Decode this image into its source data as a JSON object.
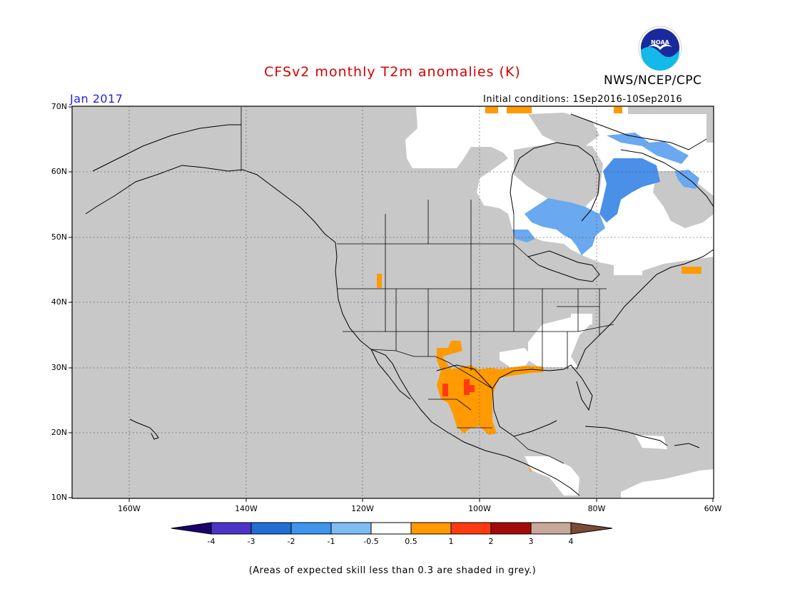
{
  "header": {
    "title": "CFSv2 monthly T2m anomalies (K)",
    "org": "NWS/NCEP/CPC",
    "logo_text": "NOAA",
    "month": "Jan 2017",
    "initial_conditions": "Initial conditions: 1Sep2016-10Sep2016"
  },
  "colors": {
    "title": "#d40000",
    "month": "#2222dd",
    "map_background": "#c8c8c8",
    "neutral": "#ffffff"
  },
  "map": {
    "lat_ticks": [
      "70N",
      "60N",
      "50N",
      "40N",
      "30N",
      "20N",
      "10N"
    ],
    "lon_ticks": [
      "160W",
      "140W",
      "120W",
      "100W",
      "80W",
      "60W"
    ],
    "extent": {
      "lon": [
        -172,
        -60
      ],
      "lat": [
        10,
        70
      ]
    },
    "grid": "dotted"
  },
  "colorbar": {
    "levels": [
      "-4",
      "-3",
      "-2",
      "-1",
      "-0.5",
      "0.5",
      "1",
      "2",
      "3",
      "4"
    ],
    "colors": [
      "#1a006e",
      "#4a35c8",
      "#1f6fd6",
      "#3f95ee",
      "#7ebcf4",
      "#ffffff",
      "#ff9a00",
      "#ff3a10",
      "#a50a0a",
      "#c8a898",
      "#7b4a34"
    ]
  },
  "footnote": "(Areas of expected skill less than 0.3 are shaded in grey.)"
}
